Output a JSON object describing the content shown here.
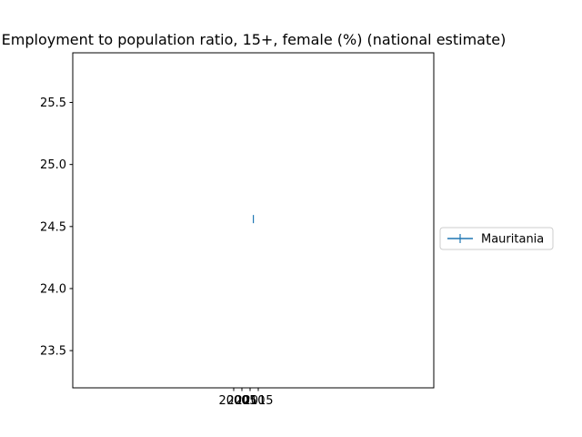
{
  "chart_data": {
    "type": "line",
    "title": "Employment to population ratio, 15+, female (%) (national estimate)",
    "xlabel": "",
    "ylabel": "",
    "x_ticks": [
      "2000",
      "2005",
      "2010",
      "2015"
    ],
    "y_ticks": [
      "23.5",
      "24.0",
      "24.5",
      "25.0",
      "25.5"
    ],
    "ylim": [
      23.2,
      25.9
    ],
    "series": [
      {
        "name": "Mauritania",
        "color": "#1f77b4",
        "marker": "|",
        "points": [
          {
            "x": 2012,
            "y": 24.56
          }
        ]
      }
    ],
    "legend_position": "center-right",
    "grid": false
  }
}
